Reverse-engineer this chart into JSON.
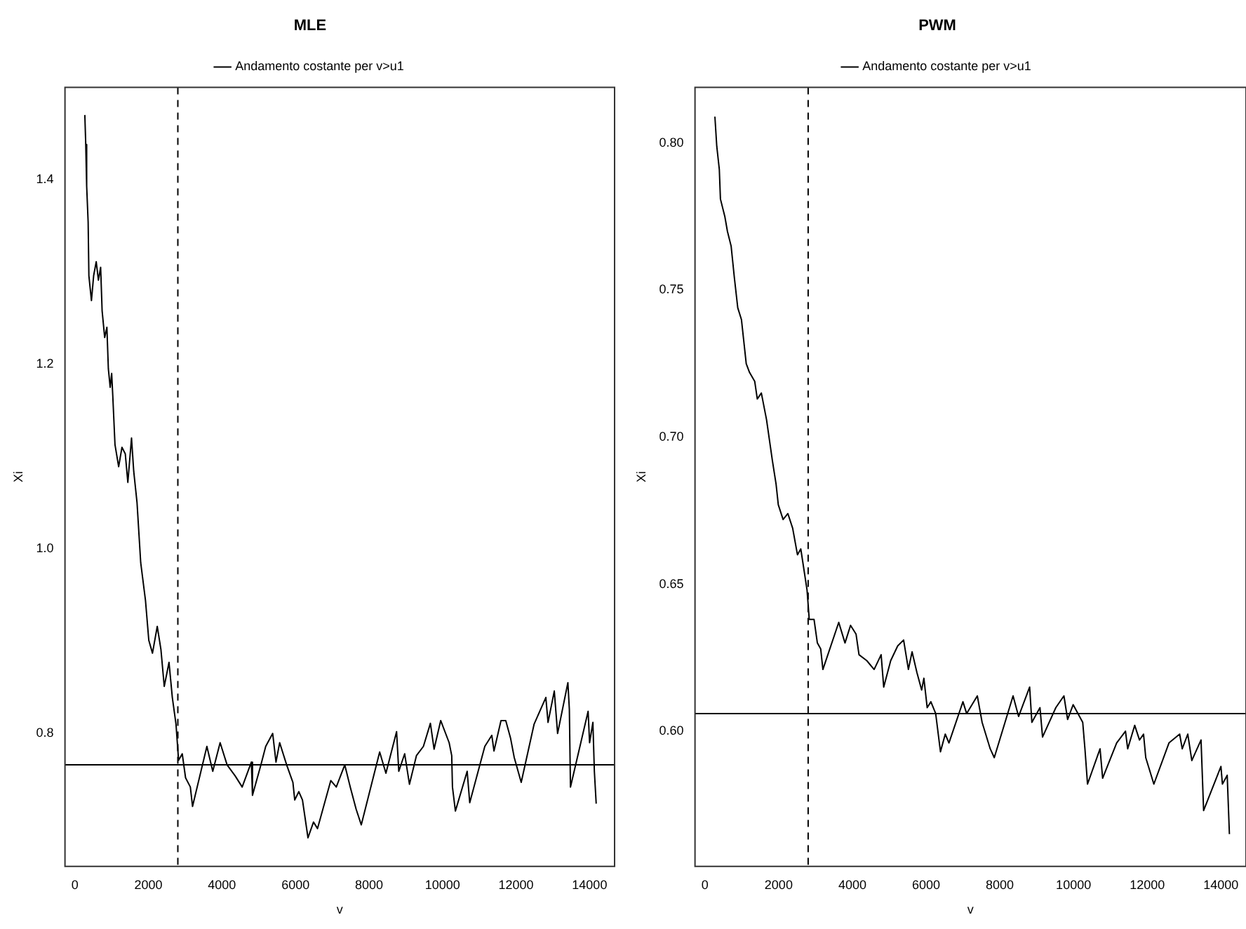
{
  "chart_data": [
    {
      "type": "line",
      "title": "MLE",
      "xlabel": "v",
      "ylabel": "Xi",
      "legend": "top",
      "xlim": [
        -270,
        14680
      ],
      "xticks": [
        0,
        2000,
        4000,
        6000,
        8000,
        10000,
        12000,
        14000
      ],
      "ylim": [
        0.656,
        1.5
      ],
      "yticks": [
        0.8,
        {
          "value": 1,
          "label": "1.0"
        },
        1.2,
        1.4
      ],
      "ref_lines": [
        {
          "axis": "x",
          "value": 2800,
          "line_style": "dashed",
          "color": "#000000"
        },
        {
          "axis": "y",
          "value": 0.766,
          "label": "Andamento costante per v>u1",
          "color": "#000000",
          "line_style": "solid"
        }
      ],
      "series": [
        {
          "color": "#000000",
          "x": [
            270,
            295,
            320,
            360,
            380,
            450,
            510,
            580,
            640,
            700,
            740,
            810,
            870,
            910,
            960,
            1000,
            1030,
            1090,
            1190,
            1280,
            1370,
            1440,
            1540,
            1600,
            1690,
            1790,
            1920,
            2010,
            2110,
            2240,
            2340,
            2430,
            2560,
            2650,
            2750,
            2820,
            2920,
            3010,
            3140,
            3200,
            3590,
            3750,
            3950,
            4140,
            4360,
            4550,
            4800,
            4830,
            5060,
            5190,
            5380,
            5470,
            5570,
            5760,
            5930,
            5980,
            6090,
            6190,
            6340,
            6490,
            6600,
            6960,
            7110,
            7340,
            7490,
            7650,
            7790,
            8290,
            8460,
            8750,
            8810,
            8970,
            9100,
            9290,
            9480,
            9670,
            9770,
            9950,
            10180,
            10250,
            10270,
            10350,
            10670,
            10740,
            11150,
            11340,
            11400,
            11590,
            11720,
            11850,
            11950,
            12140,
            12490,
            12810,
            12870,
            13040,
            13130,
            13410,
            13450,
            13480,
            13960,
            14000,
            14090,
            14130,
            14180
          ],
          "values": [
            1.47,
            1.438,
            1.393,
            1.354,
            1.296,
            1.269,
            1.296,
            1.311,
            1.291,
            1.305,
            1.258,
            1.229,
            1.24,
            1.195,
            1.175,
            1.19,
            1.166,
            1.113,
            1.089,
            1.11,
            1.103,
            1.072,
            1.12,
            1.084,
            1.05,
            0.985,
            0.944,
            0.901,
            0.887,
            0.916,
            0.891,
            0.851,
            0.877,
            0.839,
            0.81,
            0.771,
            0.778,
            0.752,
            0.742,
            0.721,
            0.786,
            0.759,
            0.79,
            0.766,
            0.754,
            0.742,
            0.769,
            0.733,
            0.766,
            0.786,
            0.8,
            0.769,
            0.79,
            0.766,
            0.747,
            0.728,
            0.737,
            0.728,
            0.687,
            0.704,
            0.697,
            0.749,
            0.742,
            0.766,
            0.742,
            0.718,
            0.701,
            0.78,
            0.757,
            0.802,
            0.759,
            0.778,
            0.745,
            0.776,
            0.786,
            0.811,
            0.783,
            0.814,
            0.79,
            0.776,
            0.742,
            0.716,
            0.759,
            0.725,
            0.786,
            0.798,
            0.781,
            0.814,
            0.814,
            0.795,
            0.774,
            0.747,
            0.81,
            0.839,
            0.812,
            0.846,
            0.8,
            0.855,
            0.826,
            0.742,
            0.824,
            0.79,
            0.812,
            0.759,
            0.724
          ]
        }
      ]
    },
    {
      "type": "line",
      "title": "PWM",
      "xlabel": "v",
      "ylabel": "Xi",
      "legend": "top",
      "xlim": [
        -270,
        14680
      ],
      "xticks": [
        0,
        2000,
        4000,
        6000,
        8000,
        10000,
        12000,
        14000
      ],
      "ylim": [
        0.554,
        0.819
      ],
      "yticks": [
        {
          "value": 0.6,
          "label": "0.60"
        },
        {
          "value": 0.65,
          "label": "0.65"
        },
        {
          "value": 0.7,
          "label": "0.70"
        },
        {
          "value": 0.75,
          "label": "0.75"
        },
        {
          "value": 0.8,
          "label": "0.80"
        }
      ],
      "ref_lines": [
        {
          "axis": "x",
          "value": 2800,
          "line_style": "dashed",
          "color": "#000000"
        },
        {
          "axis": "y",
          "value": 0.606,
          "label": "Andamento costante per v>u1",
          "color": "#000000",
          "line_style": "solid"
        }
      ],
      "series": [
        {
          "color": "#000000",
          "x": [
            270,
            320,
            390,
            420,
            540,
            610,
            710,
            800,
            890,
            990,
            1120,
            1210,
            1350,
            1420,
            1530,
            1670,
            1830,
            1930,
            1990,
            2120,
            2250,
            2380,
            2510,
            2600,
            2770,
            2830,
            2960,
            3050,
            3140,
            3200,
            3630,
            3800,
            3950,
            4100,
            4180,
            4390,
            4590,
            4780,
            4850,
            5040,
            5230,
            5390,
            5520,
            5620,
            5750,
            5880,
            5940,
            6030,
            6130,
            6260,
            6390,
            6520,
            6620,
            7000,
            7100,
            7390,
            7520,
            7740,
            7850,
            8360,
            8510,
            8810,
            8870,
            9090,
            9160,
            9520,
            9740,
            9840,
            9990,
            10250,
            10310,
            10380,
            10720,
            10790,
            11170,
            11410,
            11470,
            11660,
            11790,
            11900,
            11960,
            12180,
            12590,
            12880,
            12950,
            13100,
            13210,
            13460,
            13530,
            14000,
            14040,
            14170,
            14230
          ],
          "values": [
            0.809,
            0.799,
            0.791,
            0.781,
            0.775,
            0.77,
            0.765,
            0.754,
            0.744,
            0.74,
            0.725,
            0.722,
            0.719,
            0.713,
            0.715,
            0.706,
            0.692,
            0.684,
            0.677,
            0.672,
            0.674,
            0.669,
            0.66,
            0.662,
            0.648,
            0.638,
            0.638,
            0.63,
            0.628,
            0.621,
            0.637,
            0.63,
            0.636,
            0.633,
            0.626,
            0.624,
            0.621,
            0.626,
            0.615,
            0.624,
            0.629,
            0.631,
            0.621,
            0.627,
            0.62,
            0.614,
            0.618,
            0.608,
            0.61,
            0.606,
            0.593,
            0.599,
            0.596,
            0.61,
            0.606,
            0.612,
            0.603,
            0.594,
            0.591,
            0.612,
            0.605,
            0.615,
            0.603,
            0.608,
            0.598,
            0.608,
            0.612,
            0.604,
            0.609,
            0.603,
            0.594,
            0.582,
            0.594,
            0.584,
            0.596,
            0.6,
            0.594,
            0.602,
            0.597,
            0.599,
            0.591,
            0.582,
            0.596,
            0.599,
            0.594,
            0.599,
            0.59,
            0.597,
            0.573,
            0.588,
            0.582,
            0.585,
            0.565
          ]
        }
      ]
    }
  ]
}
